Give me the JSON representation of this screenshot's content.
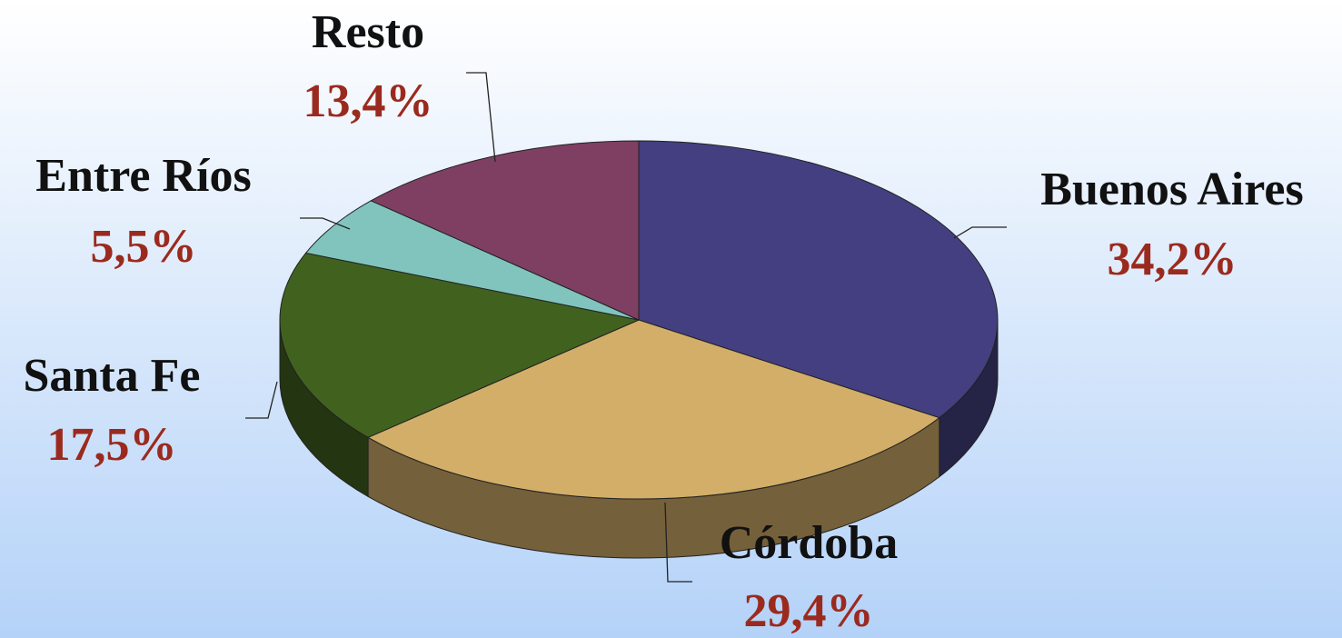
{
  "chart_data": {
    "type": "pie",
    "categories": [
      "Buenos Aires",
      "Córdoba",
      "Santa Fe",
      "Entre Ríos",
      "Resto"
    ],
    "values": [
      34.2,
      29.4,
      17.5,
      5.5,
      13.4
    ],
    "value_labels": [
      "34,2%",
      "29,4%",
      "17,5%",
      "5,5%",
      "13,4%"
    ],
    "colors": [
      "#433f80",
      "#d2ae69",
      "#41621f",
      "#80c4bd",
      "#7f3f62"
    ]
  }
}
